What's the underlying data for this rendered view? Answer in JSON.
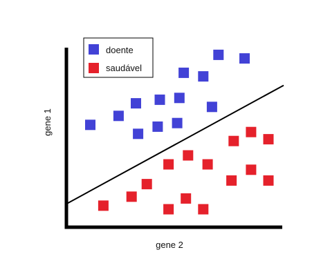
{
  "chart_data": {
    "type": "scatter",
    "title": "",
    "xlabel": "gene 2",
    "ylabel": "gene 1",
    "xlim": [
      0,
      10
    ],
    "ylim": [
      0,
      10
    ],
    "grid": false,
    "legend_position": "top-left",
    "series": [
      {
        "name": "doente",
        "color": "#4242D6",
        "marker": "square",
        "points": [
          [
            1.1,
            5.7
          ],
          [
            2.4,
            6.2
          ],
          [
            3.2,
            6.9
          ],
          [
            3.3,
            5.2
          ],
          [
            4.3,
            7.1
          ],
          [
            4.2,
            5.6
          ],
          [
            5.2,
            7.2
          ],
          [
            5.1,
            5.8
          ],
          [
            5.4,
            8.6
          ],
          [
            6.3,
            8.4
          ],
          [
            6.7,
            6.7
          ],
          [
            7.0,
            9.6
          ],
          [
            8.2,
            9.4
          ]
        ]
      },
      {
        "name": "saudável",
        "color": "#E5212B",
        "marker": "square",
        "points": [
          [
            1.7,
            1.2
          ],
          [
            3.0,
            1.7
          ],
          [
            3.7,
            2.4
          ],
          [
            4.7,
            1.0
          ],
          [
            5.5,
            1.6
          ],
          [
            6.3,
            1.0
          ],
          [
            4.7,
            3.5
          ],
          [
            5.6,
            4.0
          ],
          [
            6.5,
            3.5
          ],
          [
            7.6,
            2.6
          ],
          [
            7.7,
            4.8
          ],
          [
            8.5,
            3.2
          ],
          [
            8.5,
            5.3
          ],
          [
            9.3,
            2.6
          ],
          [
            9.3,
            4.9
          ]
        ]
      }
    ],
    "decision_boundary": {
      "color": "#000000",
      "from": [
        0,
        1.3
      ],
      "to": [
        10,
        7.9
      ]
    }
  }
}
